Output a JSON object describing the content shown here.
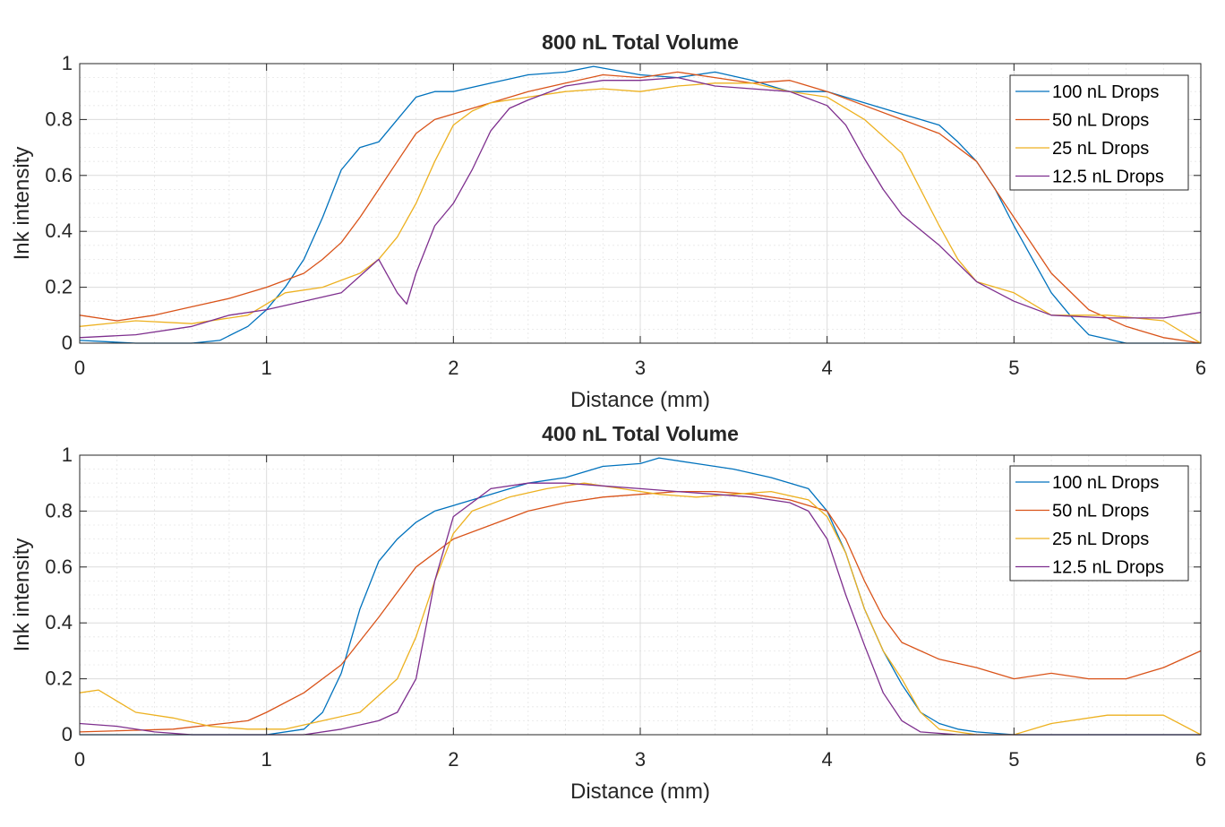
{
  "chart_data": [
    {
      "type": "line",
      "title": "800 nL Total Volume",
      "xlabel": "Distance (mm)",
      "ylabel": "Ink intensity",
      "xlim": [
        0,
        6
      ],
      "ylim": [
        0,
        1
      ],
      "xticks": [
        "0",
        "1",
        "2",
        "3",
        "4",
        "5",
        "6"
      ],
      "yticks": [
        "0",
        "0.2",
        "0.4",
        "0.6",
        "0.8",
        "1"
      ],
      "grid": true,
      "minor_grid": true,
      "legend_position": "top-right",
      "series": [
        {
          "name": "100 nL Drops",
          "color": "#0072BD",
          "x": [
            0,
            0.3,
            0.6,
            0.75,
            0.9,
            1.0,
            1.1,
            1.2,
            1.3,
            1.4,
            1.5,
            1.6,
            1.7,
            1.8,
            1.9,
            2.0,
            2.2,
            2.4,
            2.6,
            2.75,
            3.0,
            3.2,
            3.4,
            3.6,
            3.8,
            4.0,
            4.2,
            4.4,
            4.5,
            4.6,
            4.7,
            4.8,
            4.9,
            5.0,
            5.1,
            5.2,
            5.3,
            5.4,
            5.6,
            6.0
          ],
          "y": [
            0.01,
            0,
            0,
            0.01,
            0.06,
            0.12,
            0.2,
            0.3,
            0.45,
            0.62,
            0.7,
            0.72,
            0.8,
            0.88,
            0.9,
            0.9,
            0.93,
            0.96,
            0.97,
            0.99,
            0.96,
            0.95,
            0.97,
            0.94,
            0.9,
            0.9,
            0.86,
            0.82,
            0.8,
            0.78,
            0.72,
            0.65,
            0.55,
            0.42,
            0.3,
            0.18,
            0.1,
            0.03,
            0,
            0
          ]
        },
        {
          "name": "50 nL Drops",
          "color": "#D95319",
          "x": [
            0,
            0.2,
            0.4,
            0.6,
            0.8,
            1.0,
            1.2,
            1.3,
            1.4,
            1.5,
            1.6,
            1.7,
            1.8,
            1.9,
            2.0,
            2.2,
            2.4,
            2.6,
            2.8,
            3.0,
            3.2,
            3.4,
            3.6,
            3.8,
            4.0,
            4.2,
            4.4,
            4.6,
            4.8,
            5.0,
            5.2,
            5.4,
            5.6,
            5.8,
            6.0
          ],
          "y": [
            0.1,
            0.08,
            0.1,
            0.13,
            0.16,
            0.2,
            0.25,
            0.3,
            0.36,
            0.45,
            0.55,
            0.65,
            0.75,
            0.8,
            0.82,
            0.86,
            0.9,
            0.93,
            0.96,
            0.95,
            0.97,
            0.95,
            0.93,
            0.94,
            0.9,
            0.85,
            0.8,
            0.75,
            0.65,
            0.45,
            0.25,
            0.12,
            0.06,
            0.02,
            0
          ]
        },
        {
          "name": "25 nL Drops",
          "color": "#EDB120",
          "x": [
            0,
            0.3,
            0.6,
            0.9,
            1.1,
            1.3,
            1.5,
            1.6,
            1.7,
            1.8,
            1.9,
            2.0,
            2.1,
            2.2,
            2.4,
            2.6,
            2.8,
            3.0,
            3.2,
            3.4,
            3.6,
            3.8,
            4.0,
            4.2,
            4.4,
            4.5,
            4.6,
            4.7,
            4.8,
            5.0,
            5.2,
            5.5,
            5.8,
            6.0
          ],
          "y": [
            0.06,
            0.08,
            0.07,
            0.1,
            0.18,
            0.2,
            0.25,
            0.3,
            0.38,
            0.5,
            0.65,
            0.78,
            0.83,
            0.86,
            0.88,
            0.9,
            0.91,
            0.9,
            0.92,
            0.93,
            0.93,
            0.9,
            0.88,
            0.8,
            0.68,
            0.55,
            0.42,
            0.3,
            0.22,
            0.18,
            0.1,
            0.1,
            0.08,
            0
          ]
        },
        {
          "name": "12.5 nL Drops",
          "color": "#7E2F8E",
          "x": [
            0,
            0.3,
            0.6,
            0.8,
            1.0,
            1.2,
            1.4,
            1.6,
            1.7,
            1.75,
            1.8,
            1.9,
            2.0,
            2.1,
            2.2,
            2.3,
            2.4,
            2.6,
            2.8,
            3.0,
            3.2,
            3.4,
            3.6,
            3.8,
            4.0,
            4.1,
            4.2,
            4.3,
            4.4,
            4.6,
            4.8,
            5.0,
            5.2,
            5.5,
            5.8,
            6.0
          ],
          "y": [
            0.02,
            0.03,
            0.06,
            0.1,
            0.12,
            0.15,
            0.18,
            0.3,
            0.18,
            0.14,
            0.25,
            0.42,
            0.5,
            0.62,
            0.76,
            0.84,
            0.87,
            0.92,
            0.94,
            0.94,
            0.95,
            0.92,
            0.91,
            0.9,
            0.85,
            0.78,
            0.66,
            0.55,
            0.46,
            0.35,
            0.22,
            0.15,
            0.1,
            0.09,
            0.09,
            0.11
          ]
        }
      ]
    },
    {
      "type": "line",
      "title": "400 nL Total Volume",
      "xlabel": "Distance (mm)",
      "ylabel": "Ink intensity",
      "xlim": [
        0,
        6
      ],
      "ylim": [
        0,
        1
      ],
      "xticks": [
        "0",
        "1",
        "2",
        "3",
        "4",
        "5",
        "6"
      ],
      "yticks": [
        "0",
        "0.2",
        "0.4",
        "0.6",
        "0.8",
        "1"
      ],
      "grid": true,
      "minor_grid": true,
      "legend_position": "top-right",
      "series": [
        {
          "name": "100 nL Drops",
          "color": "#0072BD",
          "x": [
            0,
            0.5,
            1.0,
            1.2,
            1.3,
            1.4,
            1.5,
            1.6,
            1.7,
            1.8,
            1.9,
            2.0,
            2.2,
            2.4,
            2.6,
            2.8,
            3.0,
            3.1,
            3.3,
            3.5,
            3.7,
            3.9,
            4.0,
            4.1,
            4.2,
            4.3,
            4.4,
            4.5,
            4.6,
            4.7,
            4.8,
            5.0,
            5.5,
            6.0
          ],
          "y": [
            0,
            0,
            0,
            0.02,
            0.08,
            0.22,
            0.45,
            0.62,
            0.7,
            0.76,
            0.8,
            0.82,
            0.86,
            0.9,
            0.92,
            0.96,
            0.97,
            0.99,
            0.97,
            0.95,
            0.92,
            0.88,
            0.8,
            0.65,
            0.45,
            0.3,
            0.18,
            0.08,
            0.04,
            0.02,
            0.01,
            0,
            0,
            0
          ]
        },
        {
          "name": "50 nL Drops",
          "color": "#D95319",
          "x": [
            0,
            0.5,
            0.9,
            1.0,
            1.2,
            1.4,
            1.6,
            1.8,
            2.0,
            2.2,
            2.4,
            2.6,
            2.8,
            3.0,
            3.2,
            3.4,
            3.6,
            3.8,
            4.0,
            4.1,
            4.2,
            4.3,
            4.4,
            4.6,
            4.8,
            5.0,
            5.2,
            5.4,
            5.6,
            5.8,
            6.0
          ],
          "y": [
            0.01,
            0.02,
            0.05,
            0.08,
            0.15,
            0.25,
            0.42,
            0.6,
            0.7,
            0.75,
            0.8,
            0.83,
            0.85,
            0.86,
            0.87,
            0.87,
            0.86,
            0.84,
            0.8,
            0.7,
            0.55,
            0.42,
            0.33,
            0.27,
            0.24,
            0.2,
            0.22,
            0.2,
            0.2,
            0.24,
            0.3
          ]
        },
        {
          "name": "25 nL Drops",
          "color": "#EDB120",
          "x": [
            0,
            0.1,
            0.3,
            0.5,
            0.7,
            0.9,
            1.1,
            1.3,
            1.5,
            1.7,
            1.8,
            1.9,
            2.0,
            2.1,
            2.3,
            2.5,
            2.7,
            2.9,
            3.1,
            3.3,
            3.5,
            3.7,
            3.9,
            4.0,
            4.1,
            4.2,
            4.3,
            4.4,
            4.5,
            4.6,
            4.8,
            5.0,
            5.2,
            5.5,
            5.8,
            6.0
          ],
          "y": [
            0.15,
            0.16,
            0.08,
            0.06,
            0.03,
            0.02,
            0.02,
            0.05,
            0.08,
            0.2,
            0.35,
            0.55,
            0.72,
            0.8,
            0.85,
            0.88,
            0.9,
            0.88,
            0.86,
            0.85,
            0.86,
            0.87,
            0.84,
            0.78,
            0.65,
            0.45,
            0.3,
            0.2,
            0.08,
            0.02,
            0,
            0,
            0.04,
            0.07,
            0.07,
            0
          ]
        },
        {
          "name": "12.5 nL Drops",
          "color": "#7E2F8E",
          "x": [
            0,
            0.2,
            0.4,
            0.6,
            0.8,
            1.0,
            1.2,
            1.4,
            1.6,
            1.7,
            1.8,
            1.9,
            2.0,
            2.2,
            2.4,
            2.6,
            2.8,
            3.0,
            3.2,
            3.4,
            3.6,
            3.8,
            3.9,
            4.0,
            4.1,
            4.2,
            4.3,
            4.4,
            4.5,
            4.7,
            5.0,
            6.0
          ],
          "y": [
            0.04,
            0.03,
            0.01,
            0,
            0,
            0,
            0,
            0.02,
            0.05,
            0.08,
            0.2,
            0.55,
            0.78,
            0.88,
            0.9,
            0.9,
            0.89,
            0.88,
            0.87,
            0.86,
            0.85,
            0.83,
            0.8,
            0.7,
            0.5,
            0.32,
            0.15,
            0.05,
            0.01,
            0,
            0,
            0
          ]
        }
      ]
    }
  ]
}
